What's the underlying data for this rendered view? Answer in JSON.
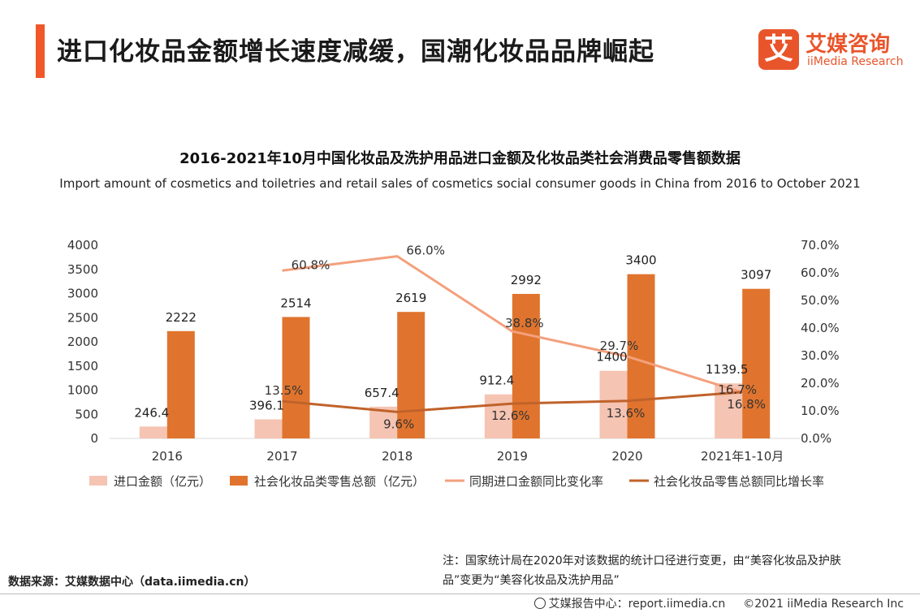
{
  "header": {
    "title": "进口化妆品金额增长速度减缓，国潮化妆品品牌崛起",
    "logo_mark": "艾",
    "logo_cn": "艾媒咨询",
    "logo_en": "iiMedia Research"
  },
  "chart_data": {
    "type": "bar",
    "title": "2016-2021年10月中国化妆品及洗护用品进口金额及化妆品类社会消费品零售额数据",
    "subtitle": "Import amount of cosmetics and toiletries and retail sales of cosmetics social consumer goods in China from 2016 to October 2021",
    "categories": [
      "2016",
      "2017",
      "2018",
      "2019",
      "2020",
      "2021年1-10月"
    ],
    "y_left": {
      "min": 0,
      "max": 4000,
      "ticks": [
        0,
        500,
        1000,
        1500,
        2000,
        2500,
        3000,
        3500,
        4000
      ]
    },
    "y_right": {
      "min": 0,
      "max": 70,
      "ticks": [
        "0.0%",
        "10.0%",
        "20.0%",
        "30.0%",
        "40.0%",
        "50.0%",
        "60.0%",
        "70.0%"
      ]
    },
    "series": [
      {
        "name": "进口金额（亿元）",
        "type": "bar",
        "axis": "left",
        "color": "#f5c4b2",
        "values": [
          246.4,
          396.1,
          657.4,
          912.4,
          1400,
          1139.5
        ],
        "labels": [
          "246.4",
          "396.1",
          "657.4",
          "912.4",
          "1400",
          "1139.5"
        ]
      },
      {
        "name": "社会化妆品类零售总额（亿元）",
        "type": "bar",
        "axis": "left",
        "color": "#e0742e",
        "values": [
          2222,
          2514,
          2619,
          2992,
          3400,
          3097
        ],
        "labels": [
          "2222",
          "2514",
          "2619",
          "2992",
          "3400",
          "3097"
        ]
      },
      {
        "name": "同期进口金额同比变化率",
        "type": "line",
        "axis": "right",
        "color": "#f3a07c",
        "values": [
          null,
          60.8,
          66.0,
          38.8,
          29.7,
          16.7
        ],
        "labels": [
          null,
          "60.8%",
          "66.0%",
          "38.8%",
          "29.7%",
          "16.7%"
        ]
      },
      {
        "name": "社会化妆品零售总额同比增长率",
        "type": "line",
        "axis": "right",
        "color": "#c0622a",
        "values": [
          null,
          13.5,
          9.6,
          12.6,
          13.6,
          16.8
        ],
        "labels": [
          null,
          "13.5%",
          "9.6%",
          "12.6%",
          "13.6%",
          "16.8%"
        ]
      }
    ],
    "legend_position": "bottom",
    "grid": false
  },
  "note": "注：国家统计局在2020年对该数据的统计口径进行变更，由“美容化妆品及护肤品”变更为“美容化妆品及洗护用品”",
  "source": "数据来源：艾媒数据中心（data.iimedia.cn）",
  "footer": {
    "report": "艾媒报告中心：report.iimedia.cn",
    "copyright": "©2021  iiMedia Research  Inc"
  }
}
